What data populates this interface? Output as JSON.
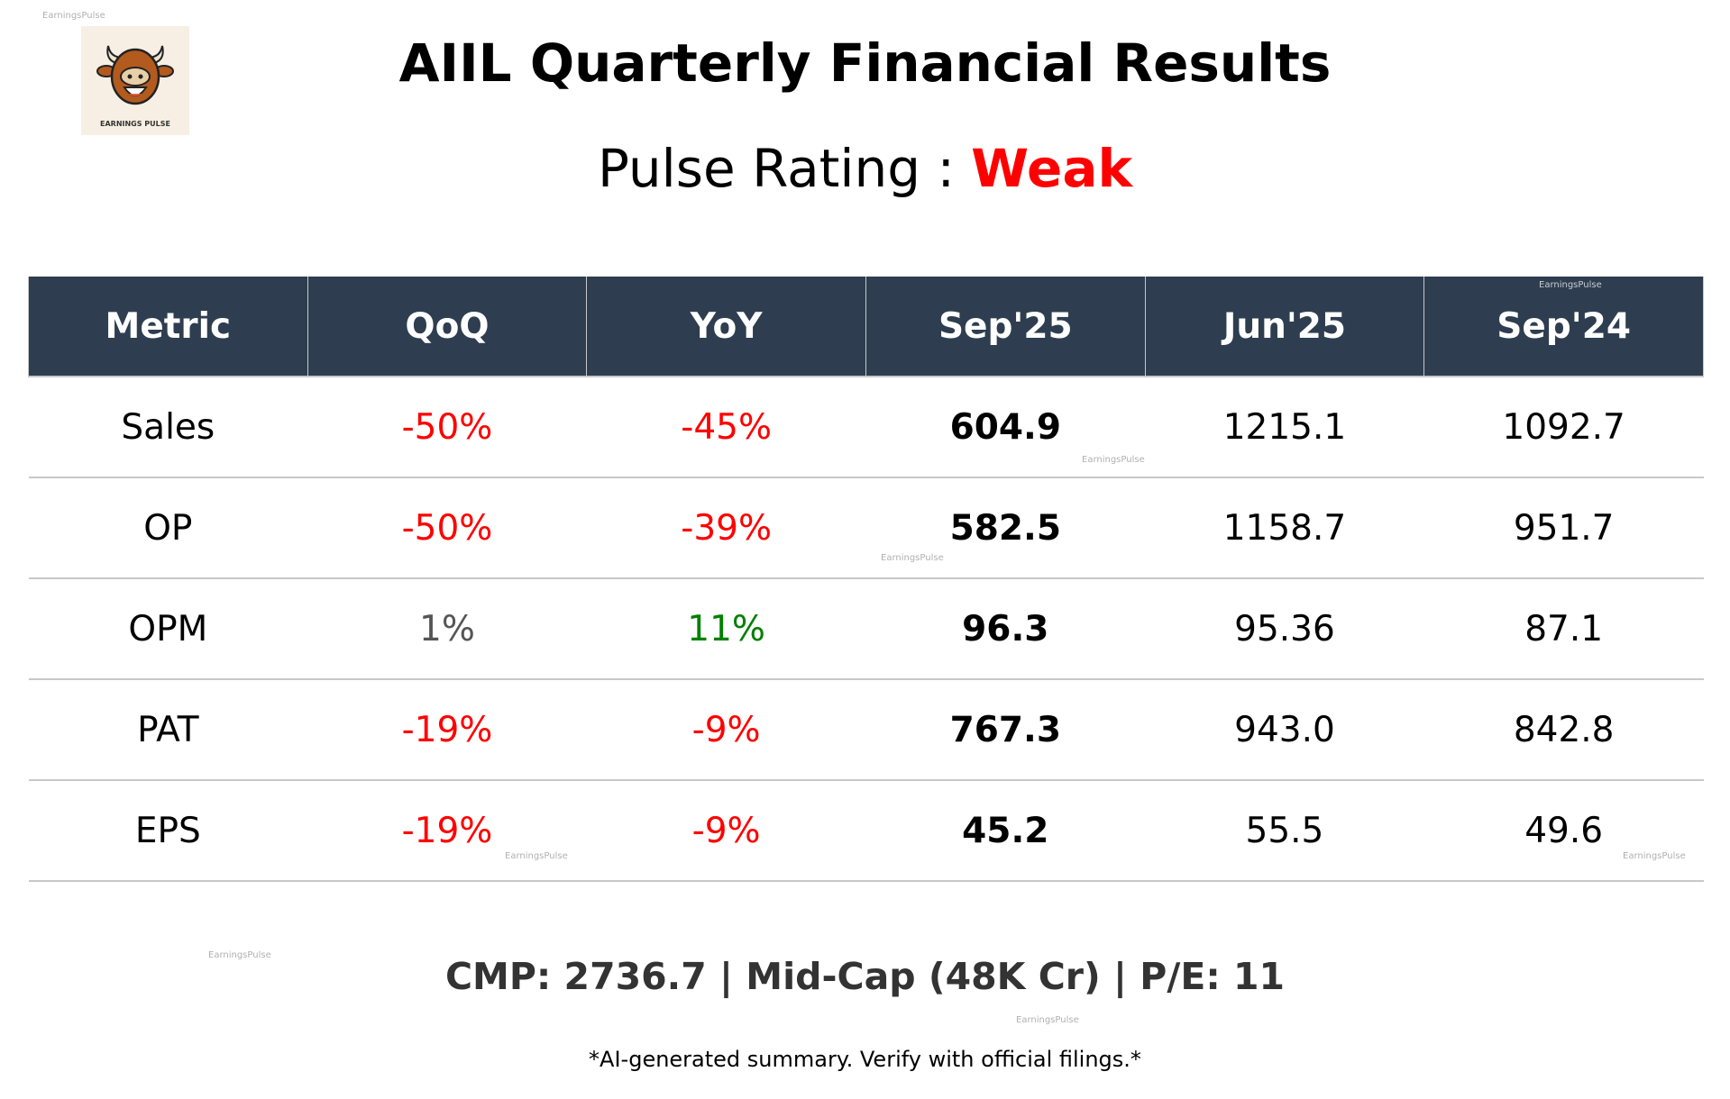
{
  "watermark": "EarningsPulse",
  "logo": {
    "text": "EARNINGS PULSE",
    "icon": "bull-mascot-icon"
  },
  "title": "AIIL Quarterly Financial Results",
  "pulse": {
    "label": "Pulse Rating :",
    "value": "Weak",
    "value_color": "#ff0000"
  },
  "table": {
    "headers": [
      "Metric",
      "QoQ",
      "YoY",
      "Sep'25",
      "Jun'25",
      "Sep'24"
    ],
    "rows": [
      {
        "metric": "Sales",
        "qoq": "-50%",
        "yoy": "-45%",
        "sep25": "604.9",
        "jun25": "1215.1",
        "sep24": "1092.7"
      },
      {
        "metric": "OP",
        "qoq": "-50%",
        "yoy": "-39%",
        "sep25": "582.5",
        "jun25": "1158.7",
        "sep24": "951.7"
      },
      {
        "metric": "OPM",
        "qoq": "1%",
        "yoy": "11%",
        "sep25": "96.3",
        "jun25": "95.36",
        "sep24": "87.1"
      },
      {
        "metric": "PAT",
        "qoq": "-19%",
        "yoy": "-9%",
        "sep25": "767.3",
        "jun25": "943.0",
        "sep24": "842.8"
      },
      {
        "metric": "EPS",
        "qoq": "-19%",
        "yoy": "-9%",
        "sep25": "45.2",
        "jun25": "55.5",
        "sep24": "49.6"
      }
    ],
    "colors": {
      "negative": "#ff0000",
      "positive": "#008000",
      "neutral": "#555555",
      "header_bg": "#2e3e50"
    }
  },
  "summary": "CMP: 2736.7 | Mid-Cap (48K Cr) | P/E: 11",
  "footer": "*AI-generated summary. Verify with official filings.*"
}
